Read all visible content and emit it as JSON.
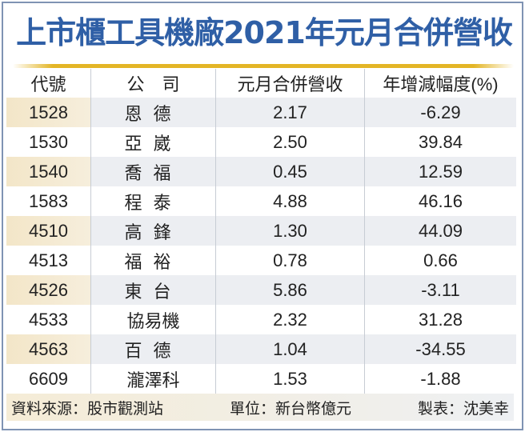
{
  "chart_data": {
    "type": "table",
    "title": "上市櫃工具機廠2021年元月合併營收",
    "columns": [
      "代號",
      "公　司",
      "元月合併營收",
      "年增減幅度(%)"
    ],
    "rows": [
      {
        "code": "1528",
        "company": "恩德",
        "revenue": "2.17",
        "yoy": "-6.29"
      },
      {
        "code": "1530",
        "company": "亞崴",
        "revenue": "2.50",
        "yoy": "39.84"
      },
      {
        "code": "1540",
        "company": "喬福",
        "revenue": "0.45",
        "yoy": "12.59"
      },
      {
        "code": "1583",
        "company": "程泰",
        "revenue": "4.88",
        "yoy": "46.16"
      },
      {
        "code": "4510",
        "company": "高鋒",
        "revenue": "1.30",
        "yoy": "44.09"
      },
      {
        "code": "4513",
        "company": "福裕",
        "revenue": "0.78",
        "yoy": "0.66"
      },
      {
        "code": "4526",
        "company": "東台",
        "revenue": "5.86",
        "yoy": "-3.11"
      },
      {
        "code": "4533",
        "company": "協易機",
        "revenue": "2.32",
        "yoy": "31.28"
      },
      {
        "code": "4563",
        "company": "百德",
        "revenue": "1.04",
        "yoy": "-34.55"
      },
      {
        "code": "6609",
        "company": "瀧澤科",
        "revenue": "1.53",
        "yoy": "-1.88"
      }
    ],
    "footer": {
      "source": "資料來源：股市觀測站",
      "unit": "單位：新台幣億元",
      "author": "製表：沈美幸"
    }
  },
  "colors": {
    "title": "#2f5fa6",
    "accent_line": "#e3b526",
    "border": "#7f93b3"
  }
}
